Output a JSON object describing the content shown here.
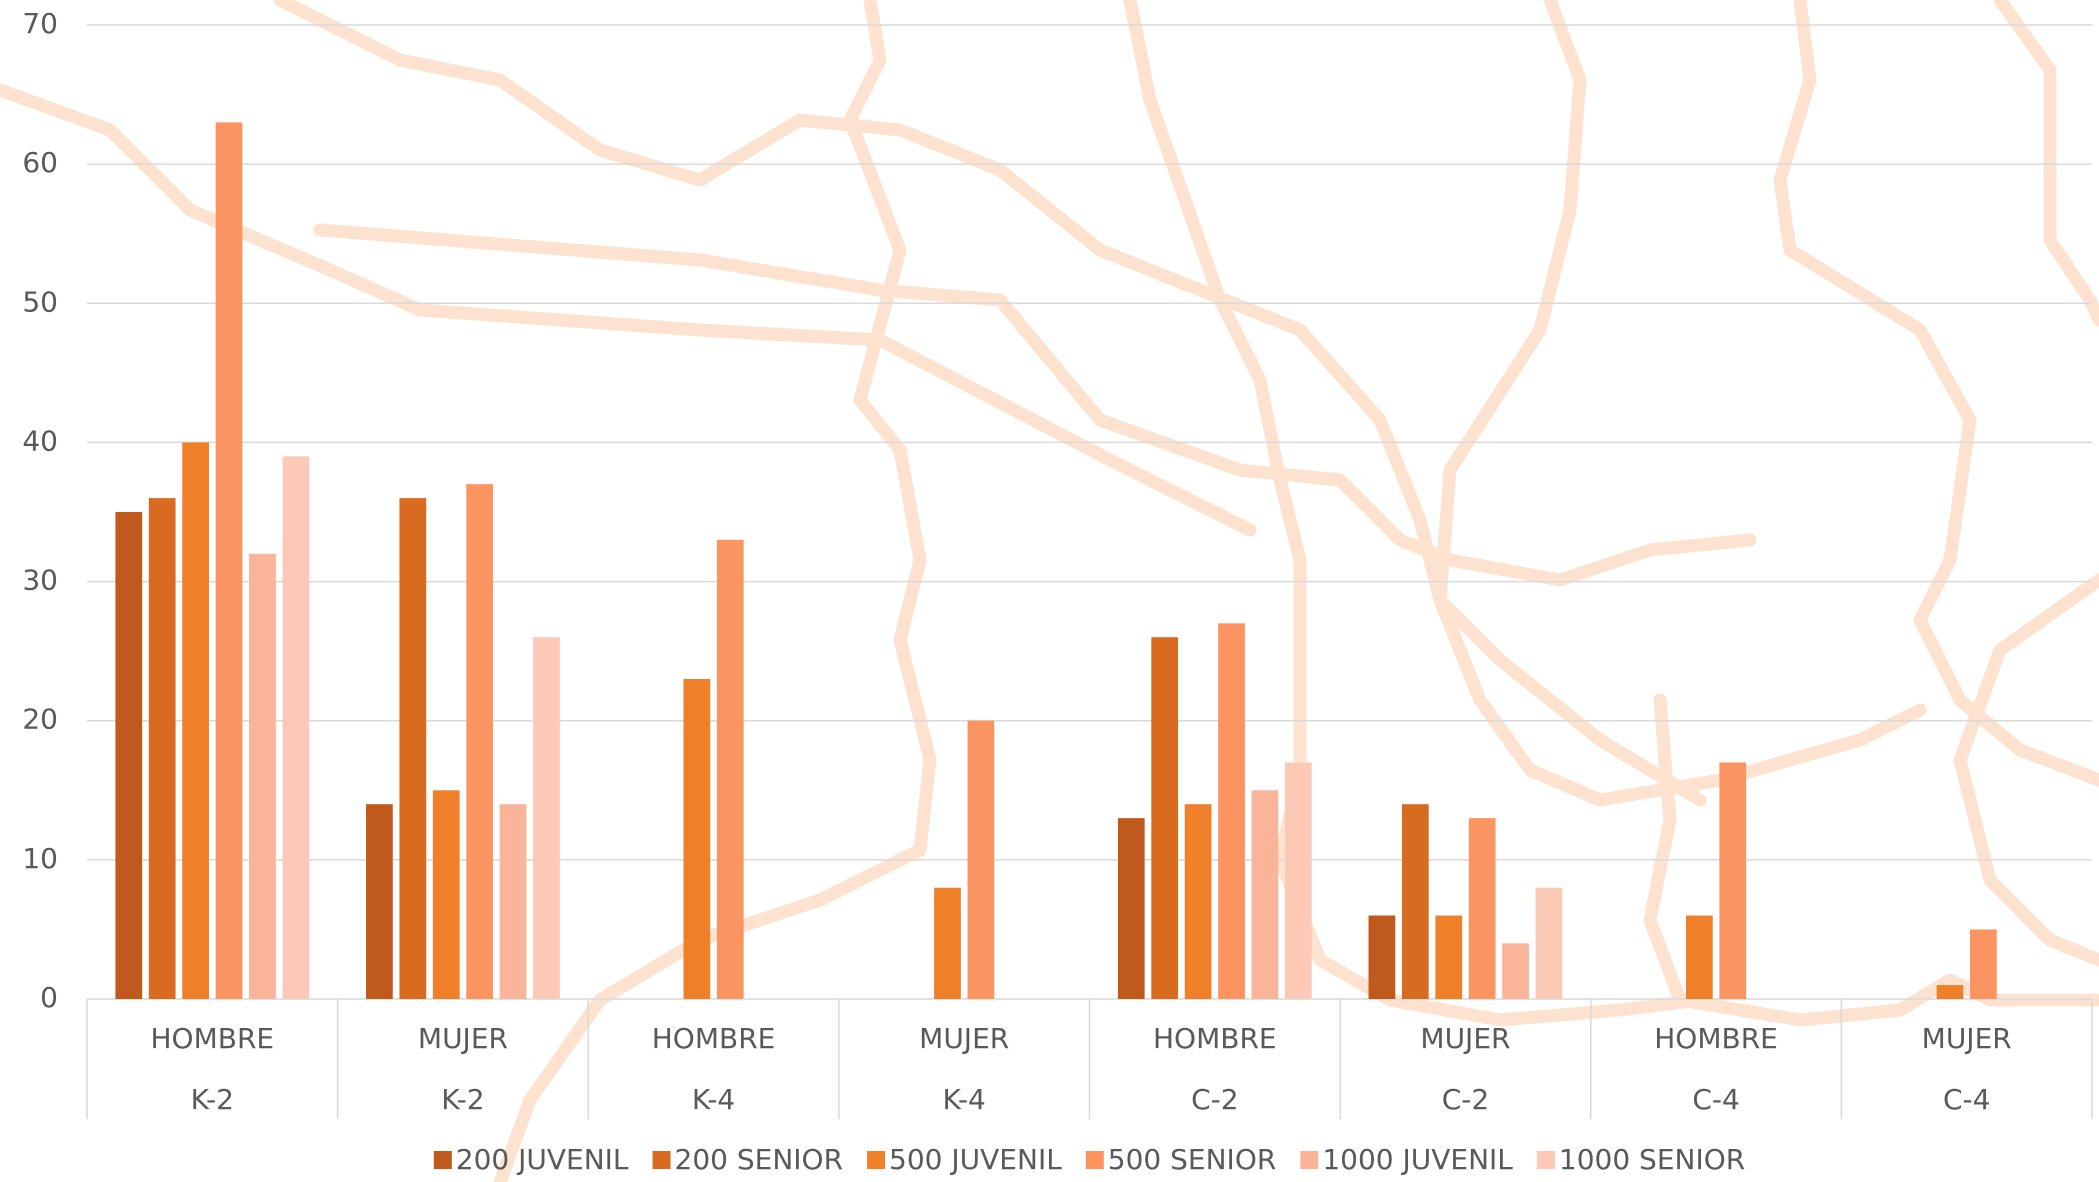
{
  "chart_data": {
    "type": "bar",
    "categories": [
      "HOMBRE",
      "MUJER",
      "HOMBRE",
      "MUJER",
      "HOMBRE",
      "MUJER",
      "HOMBRE",
      "MUJER"
    ],
    "category_groups": [
      "K-2",
      "K-2",
      "K-4",
      "K-4",
      "C-2",
      "C-2",
      "C-4",
      "C-4"
    ],
    "series": [
      {
        "name": "200 JUVENIL",
        "color": "#c05a1c",
        "values": [
          35,
          14,
          null,
          null,
          13,
          6,
          null,
          null
        ]
      },
      {
        "name": "200 SENIOR",
        "color": "#d96b20",
        "values": [
          36,
          36,
          null,
          null,
          26,
          14,
          null,
          null
        ]
      },
      {
        "name": "500 JUVENIL",
        "color": "#f07f2a",
        "values": [
          40,
          15,
          23,
          8,
          14,
          6,
          6,
          1
        ]
      },
      {
        "name": "500 SENIOR",
        "color": "#fb9461",
        "values": [
          63,
          37,
          33,
          20,
          27,
          13,
          17,
          5
        ]
      },
      {
        "name": "1000 JUVENIL",
        "color": "#f9b49a",
        "values": [
          32,
          14,
          null,
          null,
          15,
          4,
          null,
          null
        ]
      },
      {
        "name": "1000 SENIOR",
        "color": "#fdc9b7",
        "values": [
          39,
          26,
          null,
          null,
          17,
          8,
          null,
          null
        ]
      }
    ],
    "ylim": [
      0,
      70
    ],
    "yticks": [
      0,
      10,
      20,
      30,
      40,
      50,
      60,
      70
    ],
    "grid": true,
    "legend": "bottom"
  }
}
